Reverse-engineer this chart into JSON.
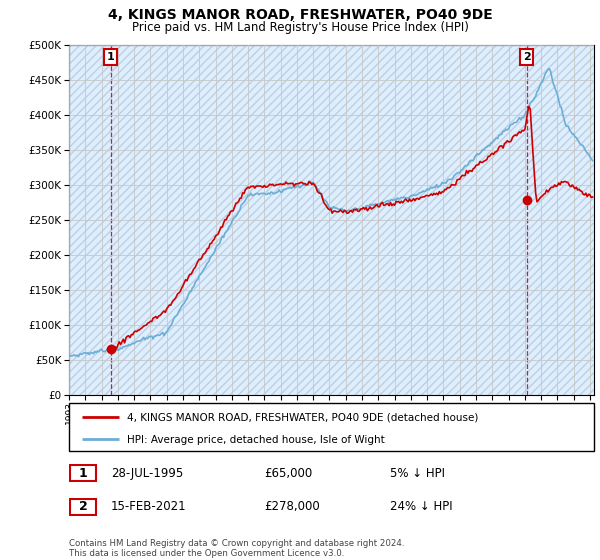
{
  "title": "4, KINGS MANOR ROAD, FRESHWATER, PO40 9DE",
  "subtitle": "Price paid vs. HM Land Registry's House Price Index (HPI)",
  "legend_line1": "4, KINGS MANOR ROAD, FRESHWATER, PO40 9DE (detached house)",
  "legend_line2": "HPI: Average price, detached house, Isle of Wight",
  "footnote": "Contains HM Land Registry data © Crown copyright and database right 2024.\nThis data is licensed under the Open Government Licence v3.0.",
  "sale1_label": "1",
  "sale1_date": "28-JUL-1995",
  "sale1_price": "£65,000",
  "sale1_hpi": "5% ↓ HPI",
  "sale1_date_num": 1995.57,
  "sale1_price_num": 65000,
  "sale2_label": "2",
  "sale2_date": "15-FEB-2021",
  "sale2_price": "£278,000",
  "sale2_hpi": "24% ↓ HPI",
  "sale2_date_num": 2021.12,
  "sale2_price_num": 278000,
  "ylim": [
    0,
    500000
  ],
  "yticks": [
    0,
    50000,
    100000,
    150000,
    200000,
    250000,
    300000,
    350000,
    400000,
    450000,
    500000
  ],
  "hpi_color": "#6baed6",
  "price_color": "#cc0000",
  "grid_color": "#c8c8c8",
  "bg_color": "#ddeeff",
  "hatch_color": "#c0cfe0"
}
